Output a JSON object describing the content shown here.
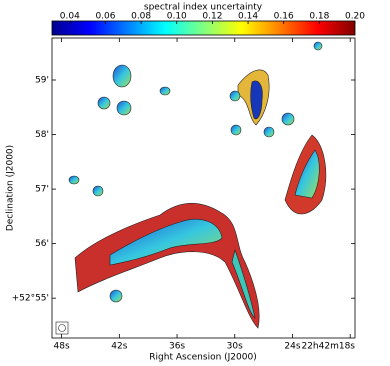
{
  "chart_data": {
    "type": "map",
    "title": "spectral index uncertainty",
    "colormap": "jet",
    "clim": [
      0.03,
      0.2
    ],
    "cticks": [
      0.04,
      0.06,
      0.08,
      {
        "value": 0.1,
        "label": "0.10"
      },
      0.12,
      0.14,
      0.16,
      0.18,
      {
        "value": 0.2,
        "label": "0.20"
      }
    ],
    "x_label": "Right Ascension (J2000)",
    "y_label": "Declination (J2000)",
    "xlim": [
      49.0,
      17.5
    ],
    "xticks": [
      {
        "value": 48,
        "label": "48s"
      },
      {
        "value": 42,
        "label": "42s"
      },
      {
        "value": 36,
        "label": "36s"
      },
      {
        "value": 30,
        "label": "30s"
      },
      {
        "value": 24,
        "label": "24s"
      },
      {
        "value": 18,
        "label": "22h42m18s"
      }
    ],
    "ylim": [
      54.27,
      59.77
    ],
    "yticks": [
      {
        "value": 55,
        "label": "+52°55'"
      },
      {
        "value": 56,
        "label": "56'"
      },
      {
        "value": 57,
        "label": "57'"
      },
      {
        "value": 58,
        "label": "58'"
      },
      {
        "value": 59,
        "label": "59'"
      }
    ]
  }
}
